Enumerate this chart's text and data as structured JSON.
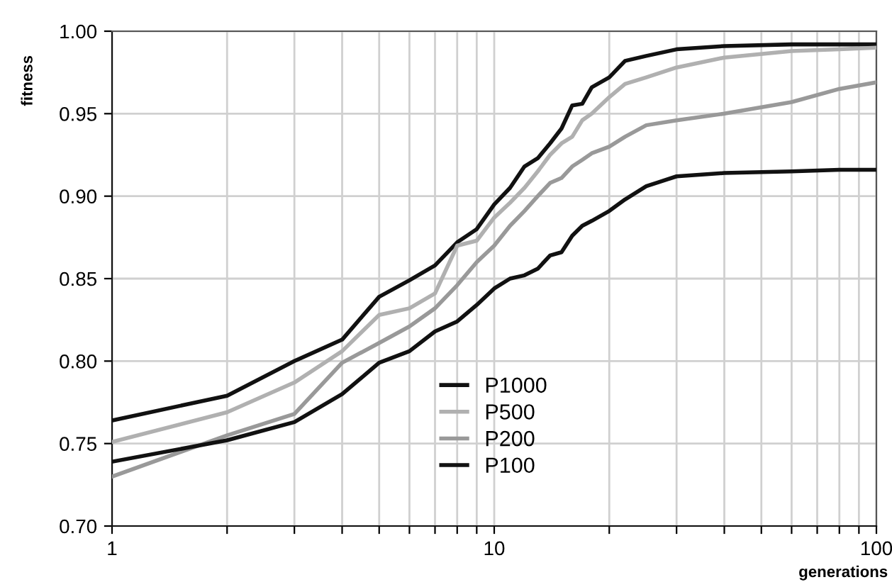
{
  "chart_data": {
    "type": "line",
    "xlabel": "generations",
    "ylabel": "fitness",
    "log": "x",
    "x": [
      1,
      2,
      3,
      4,
      5,
      6,
      7,
      8,
      9,
      10,
      11,
      12,
      13,
      14,
      15,
      16,
      17,
      18,
      20,
      22,
      25,
      30,
      40,
      60,
      80,
      100
    ],
    "series": [
      {
        "name": "P1000",
        "color": "#111111",
        "values": [
          0.764,
          0.779,
          0.8,
          0.813,
          0.839,
          0.849,
          0.858,
          0.872,
          0.88,
          0.895,
          0.905,
          0.918,
          0.923,
          0.932,
          0.941,
          0.955,
          0.956,
          0.966,
          0.972,
          0.982,
          0.985,
          0.989,
          0.991,
          0.992,
          0.992,
          0.992
        ]
      },
      {
        "name": "P500",
        "color": "#b0b0b0",
        "values": [
          0.751,
          0.769,
          0.787,
          0.806,
          0.828,
          0.832,
          0.841,
          0.87,
          0.873,
          0.887,
          0.896,
          0.905,
          0.915,
          0.925,
          0.932,
          0.936,
          0.946,
          0.95,
          0.96,
          0.968,
          0.972,
          0.978,
          0.984,
          0.988,
          0.989,
          0.99
        ]
      },
      {
        "name": "P200",
        "color": "#999999",
        "values": [
          0.73,
          0.755,
          0.768,
          0.799,
          0.811,
          0.821,
          0.832,
          0.846,
          0.86,
          0.87,
          0.882,
          0.891,
          0.9,
          0.908,
          0.911,
          0.918,
          0.922,
          0.926,
          0.93,
          0.936,
          0.943,
          0.946,
          0.95,
          0.957,
          0.965,
          0.969
        ]
      },
      {
        "name": "P100",
        "color": "#111111",
        "values": [
          0.739,
          0.752,
          0.763,
          0.78,
          0.799,
          0.806,
          0.818,
          0.824,
          0.834,
          0.844,
          0.85,
          0.852,
          0.856,
          0.864,
          0.866,
          0.876,
          0.882,
          0.885,
          0.891,
          0.898,
          0.906,
          0.912,
          0.914,
          0.915,
          0.916,
          0.916
        ]
      }
    ],
    "xlim": [
      1,
      100
    ],
    "xticks": [
      1,
      {
        "value": 2,
        "label": null
      },
      {
        "value": 3,
        "label": null
      },
      {
        "value": 4,
        "label": null
      },
      {
        "value": 5,
        "label": null
      },
      {
        "value": 6,
        "label": null
      },
      {
        "value": 7,
        "label": null
      },
      {
        "value": 8,
        "label": null
      },
      {
        "value": 9,
        "label": null
      },
      10,
      {
        "value": 20,
        "label": null
      },
      {
        "value": 30,
        "label": null
      },
      {
        "value": 40,
        "label": null
      },
      {
        "value": 50,
        "label": null
      },
      {
        "value": 60,
        "label": null
      },
      {
        "value": 70,
        "label": null
      },
      {
        "value": 80,
        "label": null
      },
      {
        "value": 90,
        "label": null
      },
      100
    ],
    "ylim": [
      0.7,
      1.0
    ],
    "yticks": [
      {
        "value": 0.7,
        "label": "0.70"
      },
      {
        "value": 0.75,
        "label": "0.75"
      },
      {
        "value": 0.8,
        "label": "0.80"
      },
      {
        "value": 0.85,
        "label": "0.85"
      },
      {
        "value": 0.9,
        "label": "0.90"
      },
      {
        "value": 0.95,
        "label": "0.95"
      },
      {
        "value": 1.0,
        "label": "1.00"
      }
    ],
    "grid": true,
    "legend": "bottom",
    "marker": "none",
    "line_style": "solid"
  }
}
